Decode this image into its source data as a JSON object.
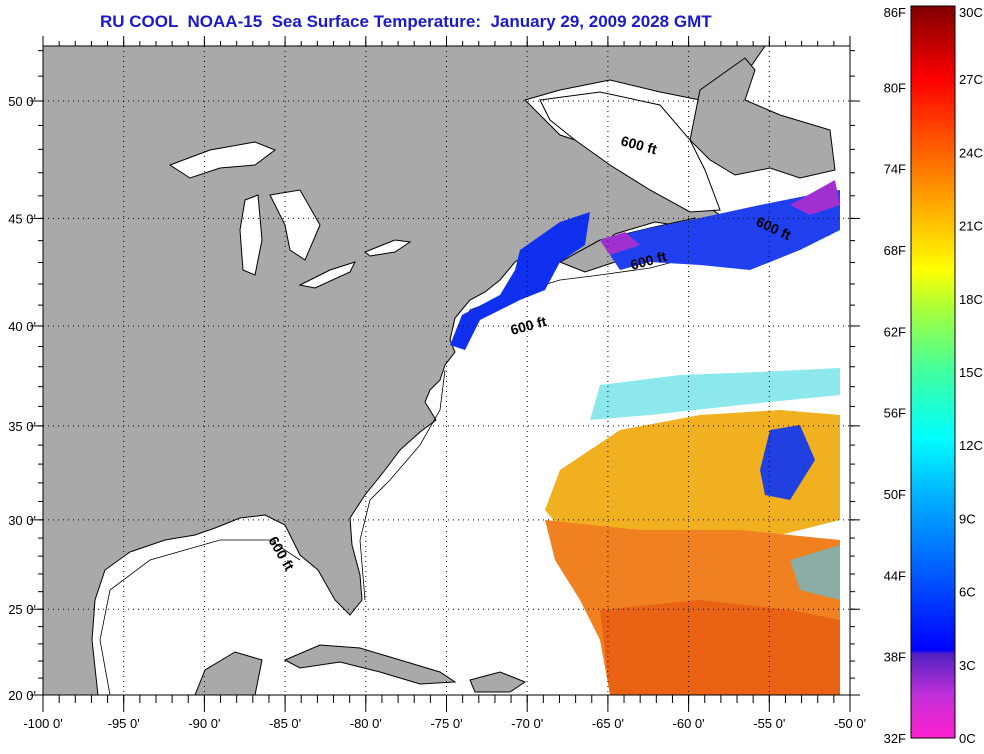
{
  "title": "RU COOL  NOAA-15  Sea Surface Temperature:  January 29, 2009 2028 GMT",
  "map": {
    "lon_range": [
      -100,
      -50
    ],
    "lat_range": [
      20,
      52
    ],
    "lon_labels": [
      "-100 0'",
      "-95 0'",
      "-90 0'",
      "-85 0'",
      "-80 0'",
      "-75 0'",
      "-70 0'",
      "-65 0'",
      "-60 0'",
      "-55 0'",
      "-50 0'"
    ],
    "lon_values": [
      -100,
      -95,
      -90,
      -85,
      -80,
      -75,
      -70,
      -65,
      -60,
      -55,
      -50
    ],
    "lat_labels": [
      "20 0'",
      "25 0'",
      "30 0'",
      "35 0'",
      "40 0'",
      "45 0'",
      "50 0'"
    ],
    "lat_values": [
      20,
      25,
      30,
      35,
      40,
      45,
      50
    ],
    "isobath_label": "600 ft",
    "colors": {
      "land": "#a9a9a9",
      "ocean": "#ffffff",
      "coast": "#000000"
    }
  },
  "colorbar": {
    "f_labels": [
      "86F",
      "80F",
      "74F",
      "68F",
      "62F",
      "56F",
      "50F",
      "44F",
      "38F",
      "32F"
    ],
    "c_labels": [
      "30C",
      "27C",
      "24C",
      "21C",
      "18C",
      "15C",
      "12C",
      "9C",
      "6C",
      "3C",
      "0C"
    ],
    "range_c": [
      0,
      30
    ]
  }
}
